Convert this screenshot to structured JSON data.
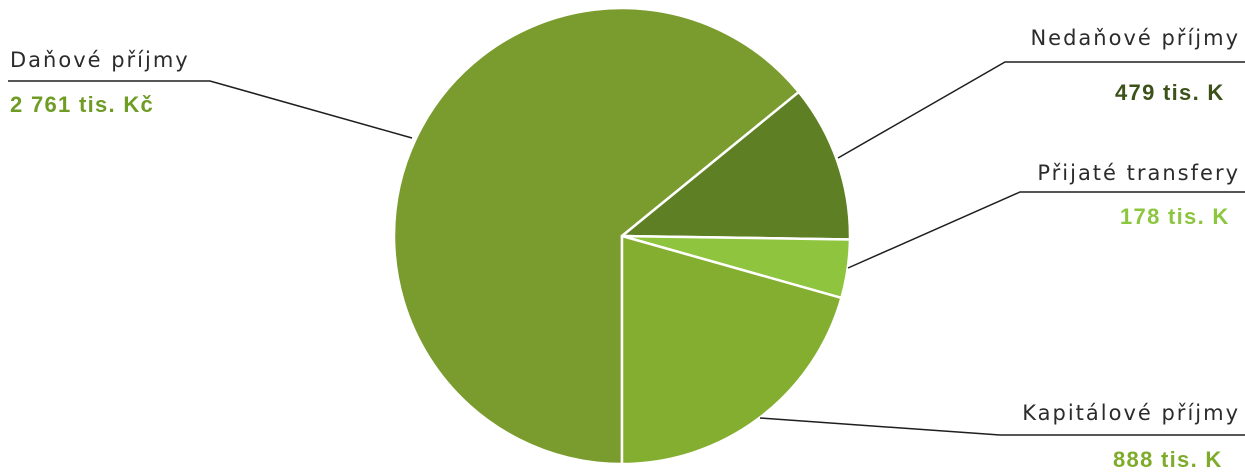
{
  "chart_data": {
    "type": "pie",
    "categories": [
      "Daňové příjmy",
      "Nedaňové příjmy",
      "Přijaté transfery",
      "Kapitálové příjmy"
    ],
    "values": [
      2761,
      479,
      178,
      888
    ],
    "value_labels": [
      "2 761 tis. Kč",
      "479 tis. K",
      "178 tis. K",
      "888 tis. K"
    ],
    "colors": [
      "#7a9b2d",
      "#5e7f24",
      "#8fc43f",
      "#84ae2f"
    ],
    "label_colors": [
      "#6e9c25",
      "#3d5219",
      "#8cc63f",
      "#7fab2b"
    ],
    "legend": "none"
  }
}
